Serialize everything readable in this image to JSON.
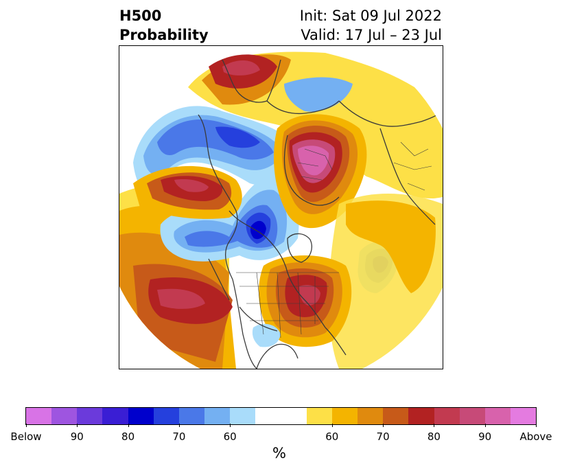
{
  "header": {
    "title_line1": "H500",
    "title_line2": "Probability",
    "init_text": "Init: Sat 09 Jul 2022",
    "valid_text": "Valid: 17 Jul – 23 Jul"
  },
  "colorbar": {
    "colors": [
      "#d873e6",
      "#9e55e0",
      "#6b3adb",
      "#3a1ed4",
      "#0000cc",
      "#2540dd",
      "#4a78e8",
      "#74b0f2",
      "#a9dcfa",
      "#ffffff",
      "#ffffff",
      "#fde047",
      "#f4b400",
      "#e08a0e",
      "#c75a19",
      "#b22222",
      "#c23a50",
      "#c74a78",
      "#d862ac",
      "#e47be0"
    ],
    "labels": [
      "Below",
      "90",
      "80",
      "70",
      "60",
      "60",
      "70",
      "80",
      "90",
      "Above"
    ],
    "unit": "%"
  },
  "map": {
    "projection": "north polar stereographic",
    "palette": {
      "dark_blue": "#0000cc",
      "blue": "#2540dd",
      "mid_blue": "#4a78e8",
      "light_blue": "#74b0f2",
      "pale_blue": "#a9dcfa",
      "yellow": "#fde047",
      "gold": "#f4b400",
      "orange": "#e08a0e",
      "dark_orange": "#c75a19",
      "red": "#b22222",
      "rose": "#c23a50",
      "pink": "#c74a78",
      "magenta": "#d862ac",
      "coastline": "#3a3a3a"
    }
  }
}
